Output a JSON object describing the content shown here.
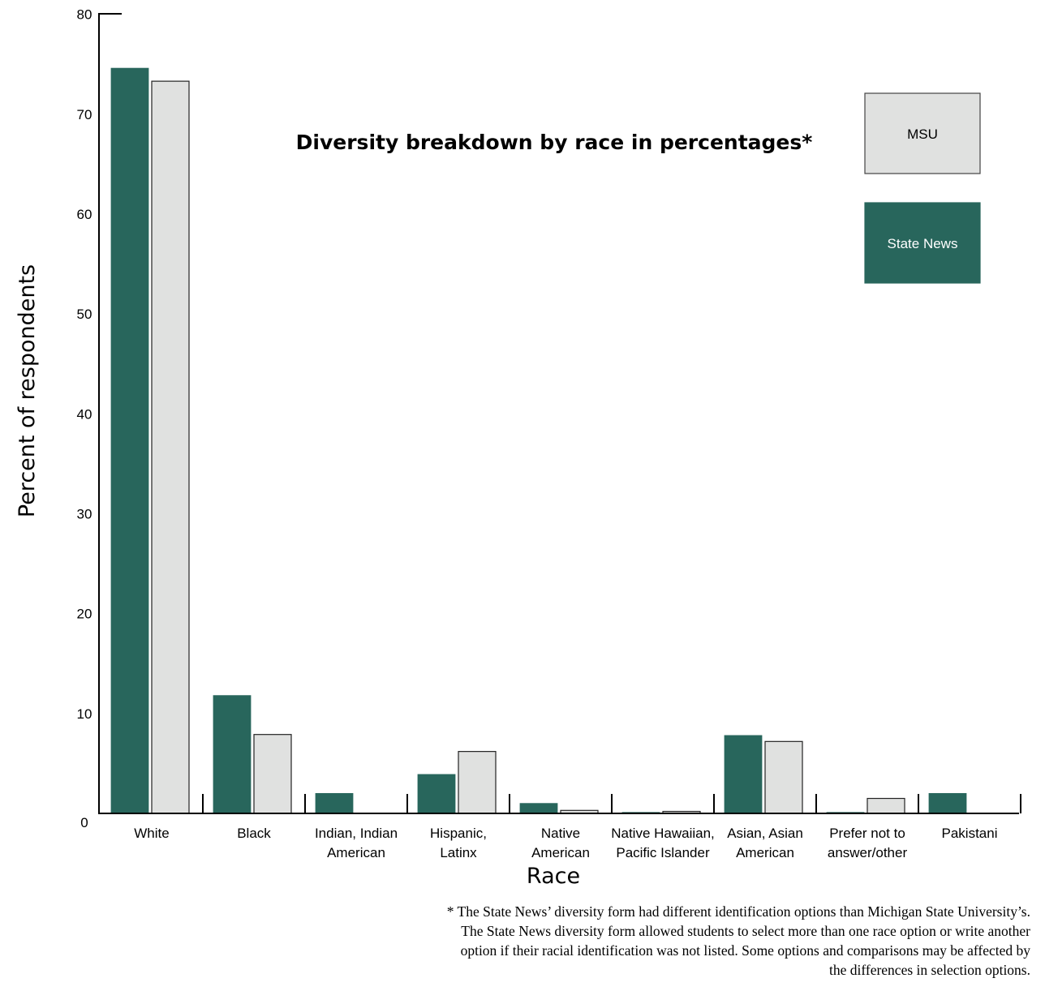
{
  "chart_data": {
    "type": "bar",
    "title": "Diversity breakdown by race in percentages*",
    "xlabel": "Race",
    "ylabel": "Percent of respondents",
    "ylim": [
      0,
      80
    ],
    "yticks": [
      "0",
      "10",
      "20",
      "30",
      "40",
      "50",
      "60",
      "70",
      "80"
    ],
    "categories": [
      [
        "White"
      ],
      [
        "Black"
      ],
      [
        "Indian, Indian",
        "American"
      ],
      [
        "Hispanic,",
        "Latinx"
      ],
      [
        "Native",
        "American"
      ],
      [
        "Native Hawaiian,",
        "Pacific Islander"
      ],
      [
        "Asian, Asian",
        "American"
      ],
      [
        "Prefer not to",
        "answer/other"
      ],
      [
        "Pakistani"
      ]
    ],
    "series": [
      {
        "name": "State News",
        "color": "#28665c",
        "values": [
          74.6,
          11.8,
          2.0,
          3.9,
          1.0,
          0.1,
          7.8,
          0.1,
          2.0
        ]
      },
      {
        "name": "MSU",
        "color": "#e0e1e0",
        "values": [
          73.3,
          7.9,
          null,
          6.2,
          0.3,
          0.2,
          7.2,
          1.5,
          null
        ]
      }
    ],
    "legend": [
      {
        "label": "MSU",
        "color": "#e0e1e0",
        "text_color": "#000000"
      },
      {
        "label": "State News",
        "color": "#28665c",
        "text_color": "#ffffff"
      }
    ],
    "legend_position": "top-right"
  },
  "footnote": [
    "* The State News’ diversity form had different identification options than Michigan State University’s.",
    "The State News diversity form allowed students to select more than one race option or write another",
    "option if their racial identification was not listed. Some options and comparisons may be affected by",
    "the differences in selection options."
  ]
}
